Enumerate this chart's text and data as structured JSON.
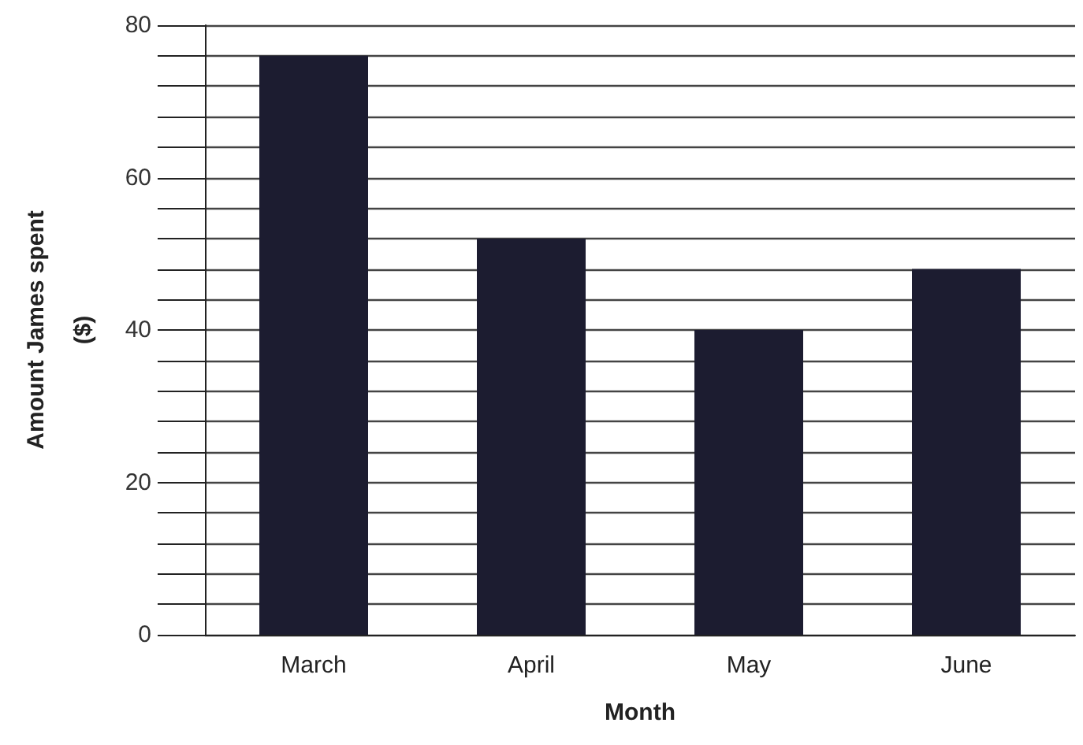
{
  "chart_data": {
    "type": "bar",
    "xlabel": "Month",
    "ylabel": "Amount James spent\n($)",
    "categories": [
      "March",
      "April",
      "May",
      "June"
    ],
    "values": [
      76,
      52,
      40,
      48
    ],
    "color": "#1c1c30",
    "ylim": [
      0,
      80
    ],
    "yticks": [
      0,
      {
        "value": 4,
        "label": null
      },
      {
        "value": 8,
        "label": null
      },
      {
        "value": 12,
        "label": null
      },
      {
        "value": 16,
        "label": null
      },
      20,
      {
        "value": 24,
        "label": null
      },
      {
        "value": 28,
        "label": null
      },
      {
        "value": 32,
        "label": null
      },
      {
        "value": 36,
        "label": null
      },
      40,
      {
        "value": 44,
        "label": null
      },
      {
        "value": 48,
        "label": null
      },
      {
        "value": 52,
        "label": null
      },
      {
        "value": 56,
        "label": null
      },
      60,
      {
        "value": 64,
        "label": null
      },
      {
        "value": 68,
        "label": null
      },
      {
        "value": 72,
        "label": null
      },
      {
        "value": 76,
        "label": null
      },
      80
    ],
    "grid": true
  }
}
